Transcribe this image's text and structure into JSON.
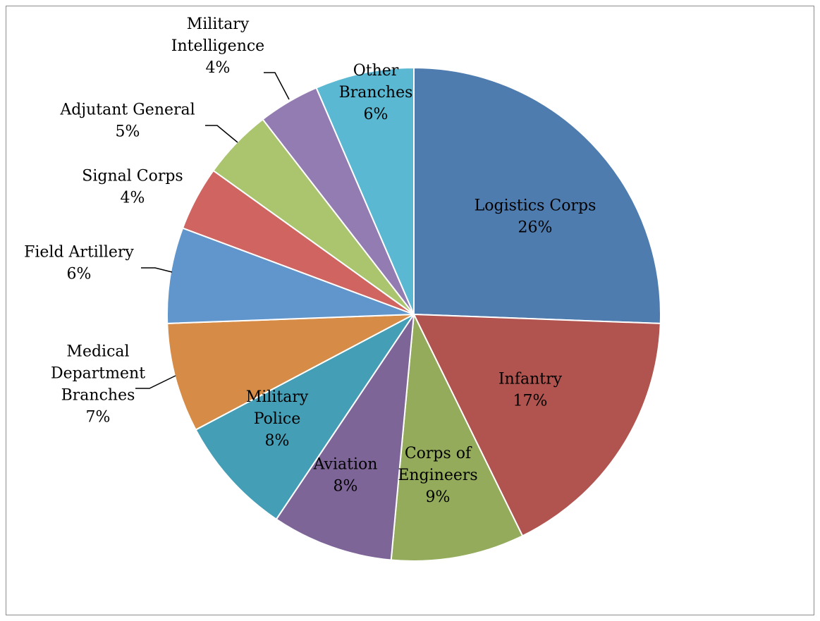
{
  "chart_data": {
    "type": "pie",
    "title": "",
    "start_angle_deg": 0,
    "direction": "clockwise",
    "series": [
      {
        "name": "",
        "values": []
      }
    ],
    "slices": [
      {
        "label": [
          "Logistics Corps"
        ],
        "percent_label": "26%",
        "value": 26.1,
        "color": "#4F7CAF",
        "label_position": "inside"
      },
      {
        "label": [
          "Infantry"
        ],
        "percent_label": "17%",
        "value": 17.5,
        "color": "#B1534E",
        "label_position": "inside"
      },
      {
        "label": [
          "Corps of",
          "Engineers"
        ],
        "percent_label": "9%",
        "value": 8.9,
        "color": "#93AB5A",
        "label_position": "inside"
      },
      {
        "label": [
          "Aviation"
        ],
        "percent_label": "8%",
        "value": 8.1,
        "color": "#7E6598",
        "label_position": "inside"
      },
      {
        "label": [
          "Military",
          "Police"
        ],
        "percent_label": "8%",
        "value": 8.0,
        "color": "#449EB6",
        "label_position": "inside"
      },
      {
        "label": [
          "Medical",
          "Department",
          "Branches"
        ],
        "percent_label": "7%",
        "value": 7.3,
        "color": "#D68C46",
        "label_position": "outside"
      },
      {
        "label": [
          "Field Artillery"
        ],
        "percent_label": "6%",
        "value": 6.4,
        "color": "#6096CC",
        "label_position": "outside"
      },
      {
        "label": [
          "Signal Corps"
        ],
        "percent_label": "4%",
        "value": 4.3,
        "color": "#CF6460",
        "label_position": "outside"
      },
      {
        "label": [
          "Adjutant General"
        ],
        "percent_label": "5%",
        "value": 4.7,
        "color": "#AAC56E",
        "label_position": "outside"
      },
      {
        "label": [
          "Military",
          "Intelligence"
        ],
        "percent_label": "4%",
        "value": 4.1,
        "color": "#937CB2",
        "label_position": "outside"
      },
      {
        "label": [
          "Other",
          "Branches"
        ],
        "percent_label": "6%",
        "value": 6.6,
        "color": "#5BB8D2",
        "label_position": "inside"
      }
    ],
    "legend": "none"
  }
}
